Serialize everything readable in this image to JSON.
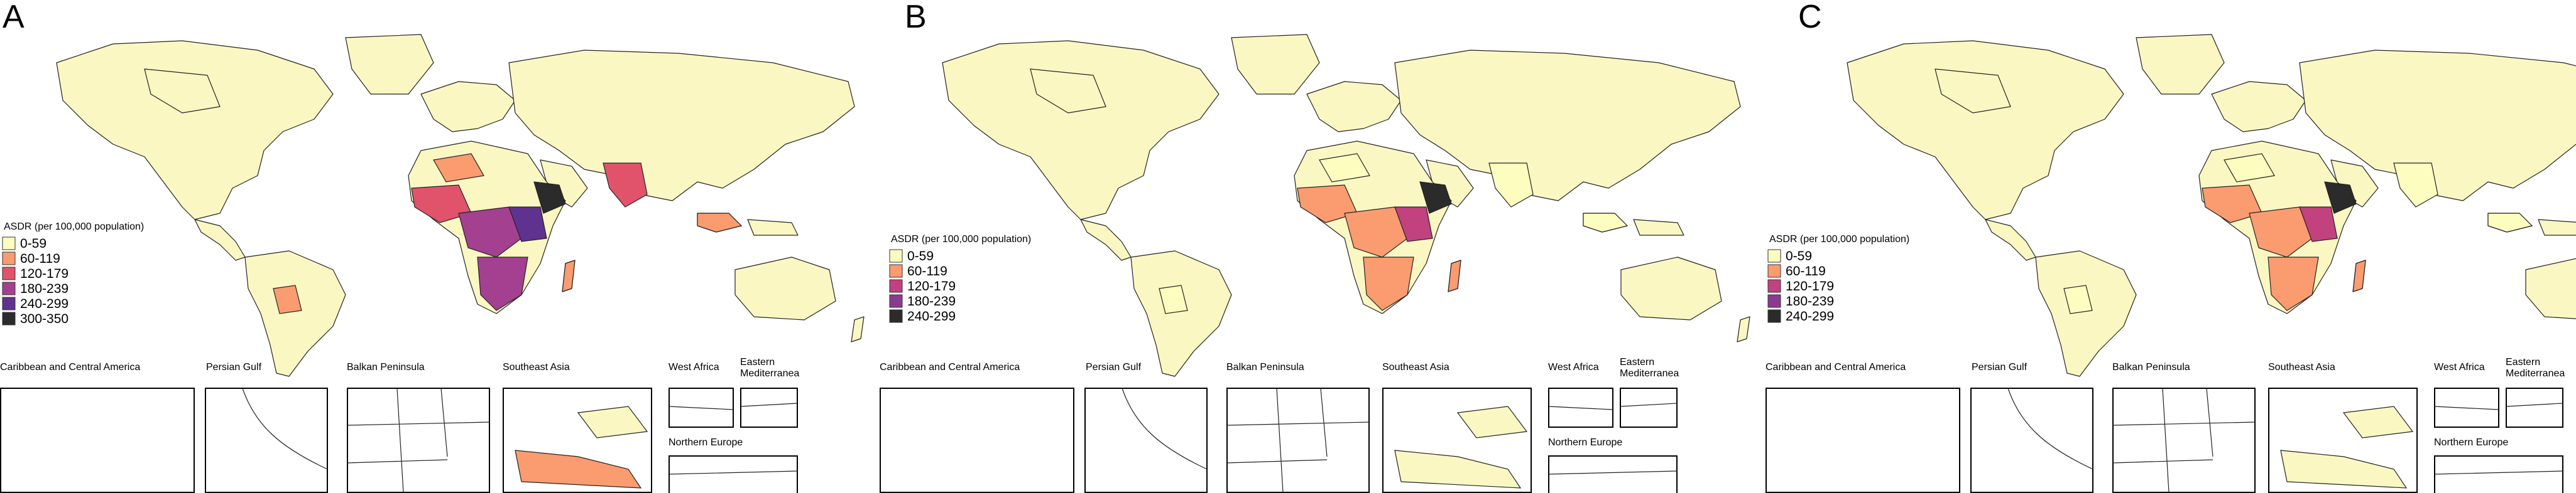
{
  "figure": {
    "panels": [
      {
        "letter": "A",
        "legend_title": "ASDR  (per 100,000 population)",
        "legend": [
          {
            "label": "0-59",
            "color": "#fcfdbf"
          },
          {
            "label": "60-119",
            "color": "#fb9b70"
          },
          {
            "label": "120-179",
            "color": "#e0536b"
          },
          {
            "label": "180-239",
            "color": "#a3408f"
          },
          {
            "label": "240-299",
            "color": "#60328f"
          },
          {
            "label": "300-350",
            "color": "#2b2b2b"
          }
        ],
        "highlights": {
          "west_africa": "#e0536b",
          "central_africa": "#a3408f",
          "east_africa_core": "#60328f",
          "horn": "#2b2b2b",
          "southern_africa": "#a3408f",
          "south_asia": "#e0536b",
          "southeast_asia": "#fb9b70",
          "madagascar": "#fb9b70",
          "south_america_patch": "#fb9b70",
          "north_africa_patch": "#fb9b70"
        }
      },
      {
        "letter": "B",
        "legend_title": "ASDR  (per 100,000 population)",
        "legend": [
          {
            "label": "0-59",
            "color": "#fcfdbf"
          },
          {
            "label": "60-119",
            "color": "#fb9b70"
          },
          {
            "label": "120-179",
            "color": "#c2417f"
          },
          {
            "label": "180-239",
            "color": "#8b3a8f"
          },
          {
            "label": "240-299",
            "color": "#2b2b2b"
          }
        ],
        "highlights": {
          "west_africa": "#fb9b70",
          "central_africa": "#fb9b70",
          "east_africa_core": "#c2417f",
          "horn": "#2b2b2b",
          "southern_africa": "#fb9b70",
          "south_asia": "#fcfdbf",
          "southeast_asia": "#fcfdbf",
          "madagascar": "#fb9b70",
          "south_america_patch": "#fcfdbf",
          "north_africa_patch": "#fcfdbf"
        }
      },
      {
        "letter": "C",
        "legend_title": "ASDR  (per 100,000 population)",
        "legend": [
          {
            "label": "0-59",
            "color": "#fcfdbf"
          },
          {
            "label": "60-119",
            "color": "#fb9b70"
          },
          {
            "label": "120-179",
            "color": "#c2417f"
          },
          {
            "label": "180-239",
            "color": "#8b3a8f"
          },
          {
            "label": "240-299",
            "color": "#2b2b2b"
          }
        ],
        "highlights": {
          "west_africa": "#fb9b70",
          "central_africa": "#fb9b70",
          "east_africa_core": "#c2417f",
          "horn": "#2b2b2b",
          "southern_africa": "#fb9b70",
          "south_asia": "#fcfdbf",
          "southeast_asia": "#fcfdbf",
          "madagascar": "#fb9b70",
          "south_america_patch": "#fcfdbf",
          "north_africa_patch": "#fcfdbf"
        }
      }
    ],
    "insets": {
      "caribbean": "Caribbean and Central America",
      "persian_gulf": "Persian Gulf",
      "balkan": "Balkan Peninsula",
      "southeast_asia": "Southeast Asia",
      "west_africa": "West Africa",
      "eastern_med_1": "Eastern",
      "eastern_med_2": "Mediterranea",
      "northern_europe": "Northern Europe"
    }
  }
}
